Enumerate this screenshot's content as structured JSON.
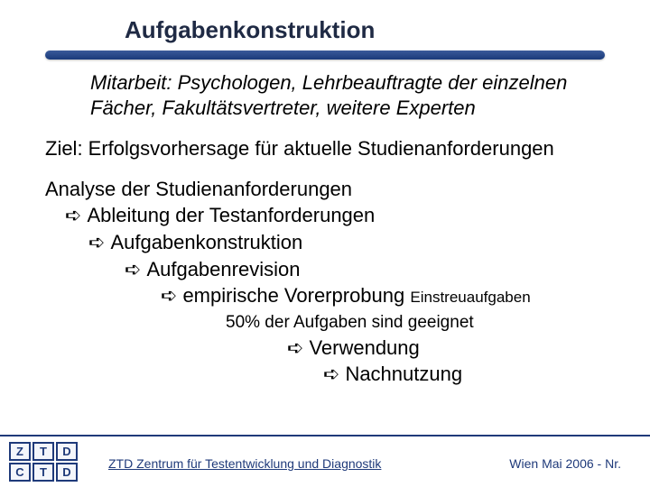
{
  "title": "Aufgabenkonstruktion",
  "mitarbeit": "Mitarbeit: Psychologen, Lehrbeauftragte der einzelnen Fächer, Fakultätsvertreter, weitere Experten",
  "ziel": "Ziel: Erfolgsvorhersage für aktuelle Studienanforderungen",
  "analyse": {
    "root": "Analyse der Studienanforderungen",
    "l1": "Ableitung der Testanforderungen",
    "l2": "Aufgabenkonstruktion",
    "l3": "Aufgabenrevision",
    "l4a": "empirische Vorerprobung",
    "l4b": "Einstreuaufgaben",
    "note": "50% der Aufgaben sind geeignet",
    "l5": "Verwendung",
    "l6": "Nachnutzung"
  },
  "arrow_glyph": "➪",
  "logo": {
    "top": [
      "Z",
      "T",
      "D"
    ],
    "bottom": [
      "C",
      "T",
      "D"
    ]
  },
  "footer": {
    "center": "ZTD Zentrum für Testentwicklung und Diagnostik",
    "right": "Wien Mai 2006   -  Nr."
  },
  "colors": {
    "accent": "#1f3a7a",
    "title": "#1f2a44",
    "bar_gradient": [
      "#3a5a9a",
      "#1a3a7a"
    ]
  }
}
